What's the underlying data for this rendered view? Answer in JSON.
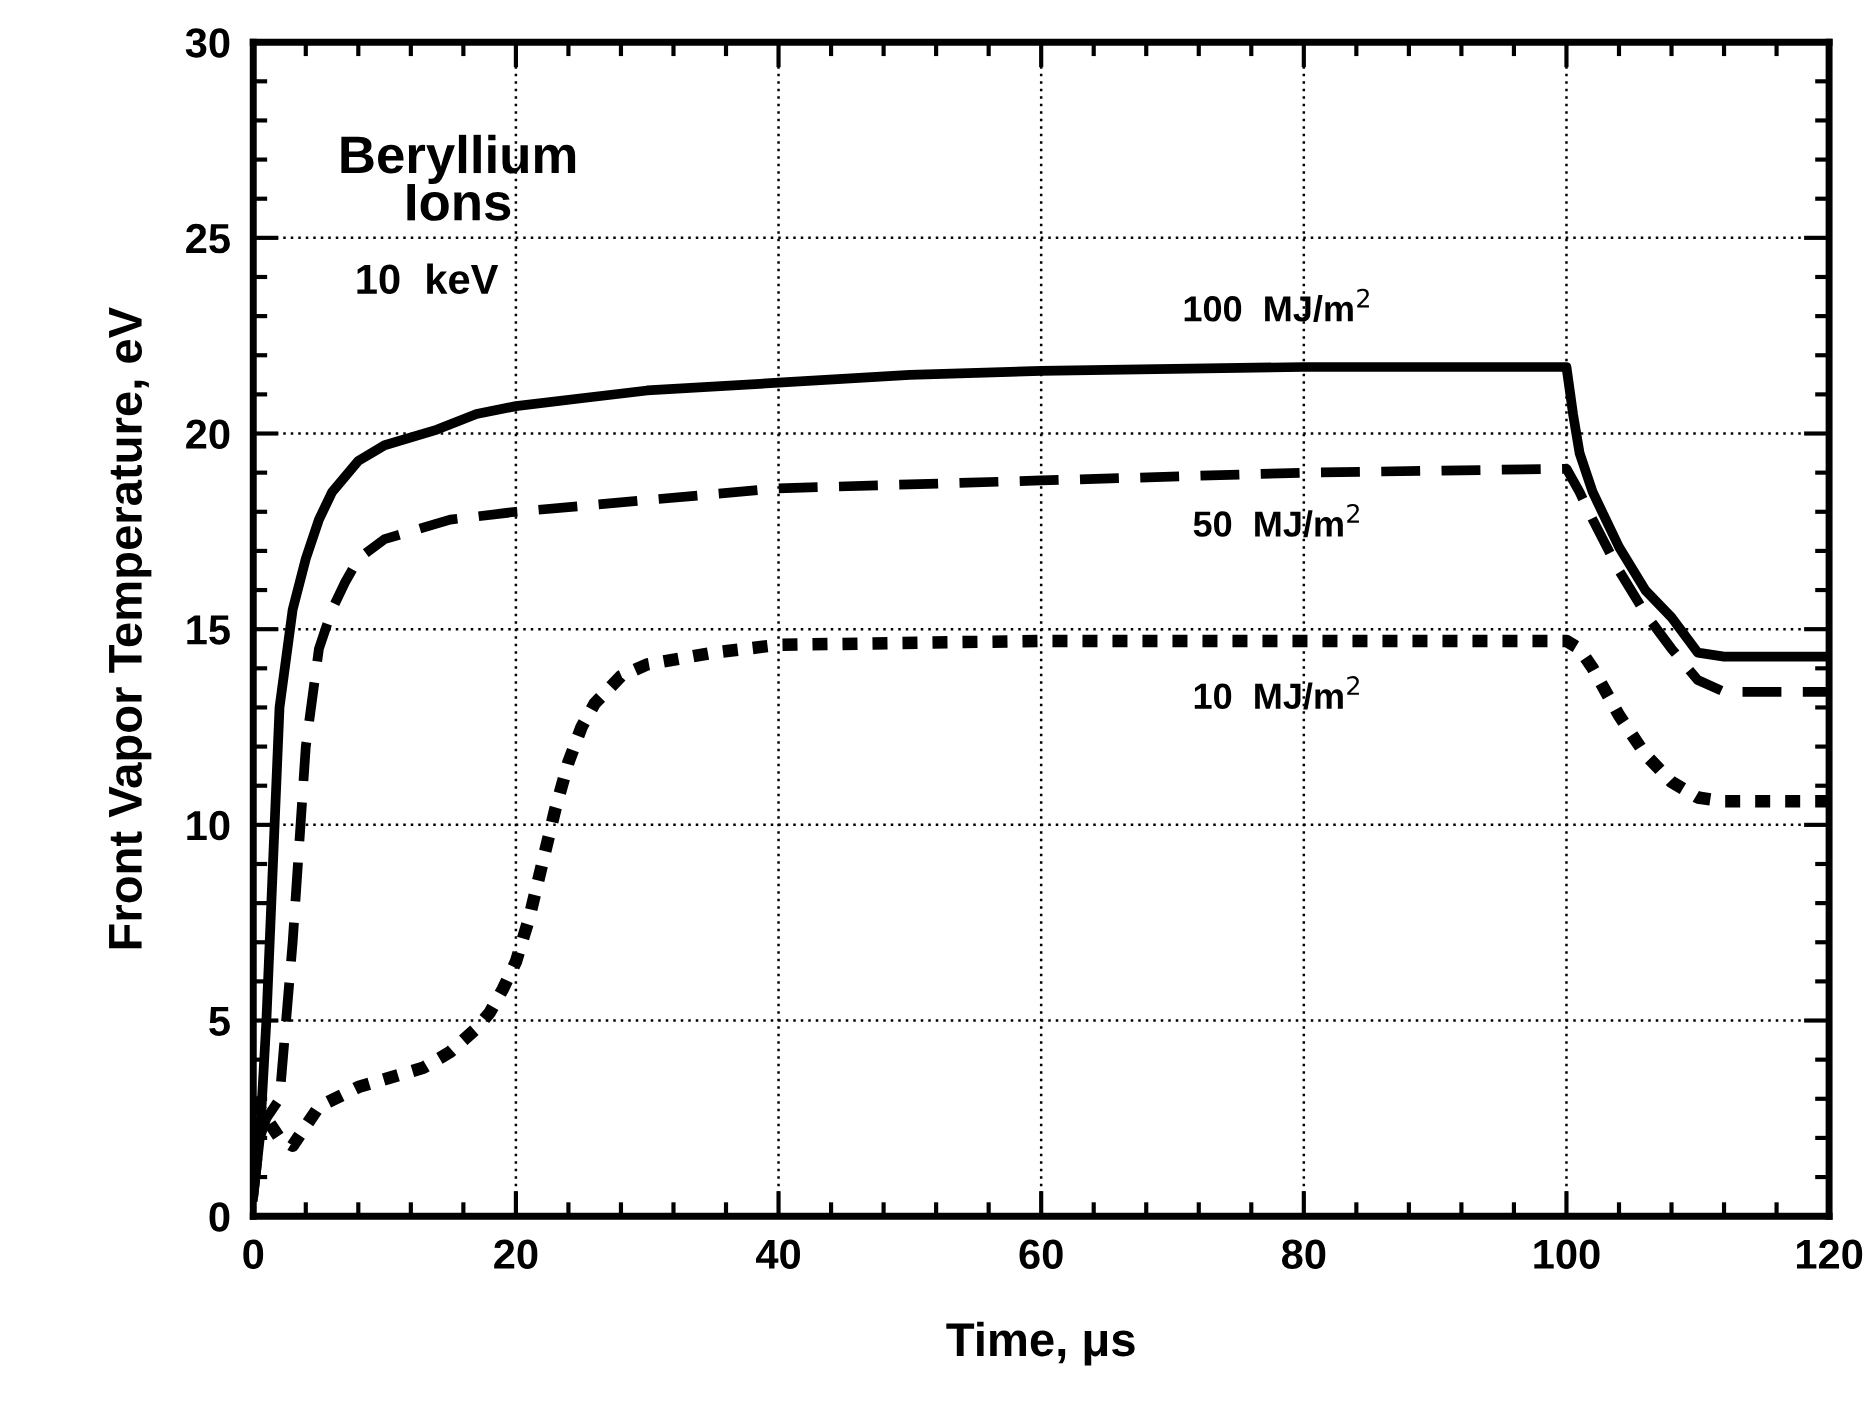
{
  "chart_data": {
    "type": "line",
    "xlabel": "Time, μs",
    "ylabel": "Front Vapor Temperature, eV",
    "annotations": [
      "Beryllium\nIons",
      "10  keV"
    ],
    "xlim": [
      0,
      120
    ],
    "ylim": [
      0,
      30
    ],
    "xticks": [
      0,
      20,
      40,
      60,
      80,
      100,
      120
    ],
    "yticks": [
      0,
      5,
      10,
      15,
      20,
      25,
      30
    ],
    "grid": true,
    "legend": false,
    "series": [
      {
        "name": "100  MJ/m$^{2}$",
        "color": "#000000",
        "line_style": "solid",
        "x": [
          0,
          0.5,
          1,
          1.5,
          2,
          3,
          4,
          5,
          6,
          8,
          10,
          14,
          17,
          20,
          25,
          30,
          40,
          50,
          60,
          80,
          100,
          100.5,
          101,
          102,
          103,
          104,
          106,
          108,
          110,
          112,
          120
        ],
        "values": [
          0.5,
          2,
          5,
          9,
          13,
          15.5,
          16.8,
          17.8,
          18.5,
          19.3,
          19.7,
          20.1,
          20.5,
          20.7,
          20.9,
          21.1,
          21.3,
          21.5,
          21.6,
          21.7,
          21.7,
          20.5,
          19.5,
          18.5,
          17.8,
          17.1,
          16,
          15.3,
          14.4,
          14.3,
          14.3
        ]
      },
      {
        "name": "50  MJ/m$^{2}$",
        "color": "#000000",
        "line_style": "dashed",
        "x": [
          0,
          0.5,
          1,
          2,
          3,
          4,
          5,
          6,
          7,
          8,
          10,
          13,
          15,
          20,
          30,
          40,
          60,
          80,
          100,
          101,
          102,
          104,
          106,
          108,
          110,
          112,
          120
        ],
        "values": [
          0.5,
          2,
          2.5,
          3,
          7,
          12,
          14.5,
          15.5,
          16.2,
          16.8,
          17.3,
          17.6,
          17.8,
          18,
          18.3,
          18.6,
          18.8,
          19,
          19.1,
          18.5,
          17.8,
          16.5,
          15.4,
          14.5,
          13.7,
          13.4,
          13.4
        ]
      },
      {
        "name": "10  MJ/m$^{2}$",
        "color": "#000000",
        "line_style": "dotted",
        "x": [
          0,
          1,
          2,
          3,
          5,
          8,
          10,
          13,
          15,
          17,
          18,
          19,
          20,
          21,
          22,
          23,
          24,
          25,
          26,
          28,
          30,
          35,
          40,
          60,
          80,
          100,
          101,
          102,
          104,
          106,
          108,
          110,
          112,
          120
        ],
        "values": [
          3,
          2.5,
          2,
          1.8,
          2.8,
          3.3,
          3.5,
          3.8,
          4.2,
          4.8,
          5.2,
          5.8,
          6.5,
          7.6,
          9,
          10.4,
          11.6,
          12.5,
          13.1,
          13.8,
          14.1,
          14.4,
          14.6,
          14.7,
          14.7,
          14.7,
          14.5,
          14,
          12.8,
          11.8,
          11.1,
          10.7,
          10.6,
          10.6
        ]
      }
    ]
  }
}
